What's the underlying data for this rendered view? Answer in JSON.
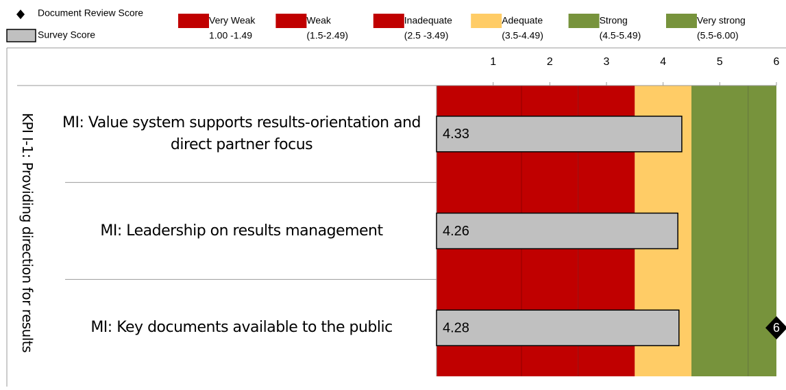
{
  "chart_data": {
    "type": "bar",
    "group_label": "KPI I-1: Providing direction for results",
    "categories": [
      "MI: Value system supports results-orientation and direct partner focus",
      "MI: Leadership on results management",
      "MI: Key documents available to the public"
    ],
    "series": [
      {
        "name": "Survey Score",
        "color": "#c0c0c0",
        "values": [
          4.33,
          4.26,
          4.28
        ]
      },
      {
        "name": "Document Review Score",
        "color": "#000000",
        "marker": "diamond",
        "values": [
          null,
          null,
          6
        ]
      }
    ],
    "bands": [
      {
        "name": "Very Weak",
        "range_label": "1.00 -1.49",
        "color": "#c00000",
        "start": 0,
        "end": 1.5
      },
      {
        "name": "Weak",
        "range_label": "(1.5-2.49)",
        "color": "#c00000",
        "start": 1.5,
        "end": 2.5
      },
      {
        "name": "Inadequate",
        "range_label": "(2.5 -3.49)",
        "color": "#c00000",
        "start": 2.5,
        "end": 3.5
      },
      {
        "name": "Adequate",
        "range_label": "(3.5-4.49)",
        "color": "#ffcc66",
        "start": 3.5,
        "end": 4.5
      },
      {
        "name": "Strong",
        "range_label": "(4.5-5.49)",
        "color": "#77933c",
        "start": 4.5,
        "end": 5.5
      },
      {
        "name": "Very strong",
        "range_label": "(5.5-6.00)",
        "color": "#77933c",
        "start": 5.5,
        "end": 6
      }
    ],
    "xlim": [
      0,
      6
    ],
    "xticks": [
      1,
      2,
      3,
      4,
      5,
      6
    ]
  }
}
